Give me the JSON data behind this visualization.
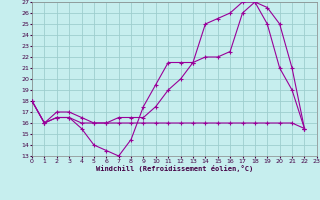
{
  "xlabel": "Windchill (Refroidissement éolien,°C)",
  "bg_color": "#c6eeee",
  "grid_color": "#9ecece",
  "line_color": "#990099",
  "xmin": 0,
  "xmax": 23,
  "ymin": 13,
  "ymax": 27,
  "series1_x": [
    0,
    1,
    2,
    3,
    4,
    5,
    6,
    7,
    8,
    9,
    10,
    11,
    12,
    13,
    14,
    15,
    16,
    17,
    18,
    19,
    20,
    21,
    22
  ],
  "series1_y": [
    18,
    16,
    16.5,
    16.5,
    15.5,
    14.0,
    13.5,
    13.0,
    14.5,
    17.5,
    19.5,
    21.5,
    21.5,
    21.5,
    25.0,
    25.5,
    26.0,
    27.0,
    27.0,
    25.0,
    21.0,
    19.0,
    15.5
  ],
  "series2_x": [
    0,
    1,
    2,
    3,
    4,
    5,
    6,
    7,
    8,
    9,
    10,
    11,
    12,
    13,
    14,
    15,
    16,
    17,
    18,
    19,
    20,
    21,
    22
  ],
  "series2_y": [
    18,
    16,
    16.5,
    16.5,
    16.0,
    16.0,
    16.0,
    16.0,
    16.0,
    16.0,
    16.0,
    16.0,
    16.0,
    16.0,
    16.0,
    16.0,
    16.0,
    16.0,
    16.0,
    16.0,
    16.0,
    16.0,
    15.5
  ],
  "series3_x": [
    0,
    1,
    2,
    3,
    4,
    5,
    6,
    7,
    8,
    9,
    10,
    11,
    12,
    13,
    14,
    15,
    16,
    17,
    18,
    19,
    20,
    21,
    22
  ],
  "series3_y": [
    18,
    16,
    17.0,
    17.0,
    16.5,
    16.0,
    16.0,
    16.5,
    16.5,
    16.5,
    17.5,
    19.0,
    20.0,
    21.5,
    22.0,
    22.0,
    22.5,
    26.0,
    27.0,
    26.5,
    25.0,
    21.0,
    15.5
  ]
}
